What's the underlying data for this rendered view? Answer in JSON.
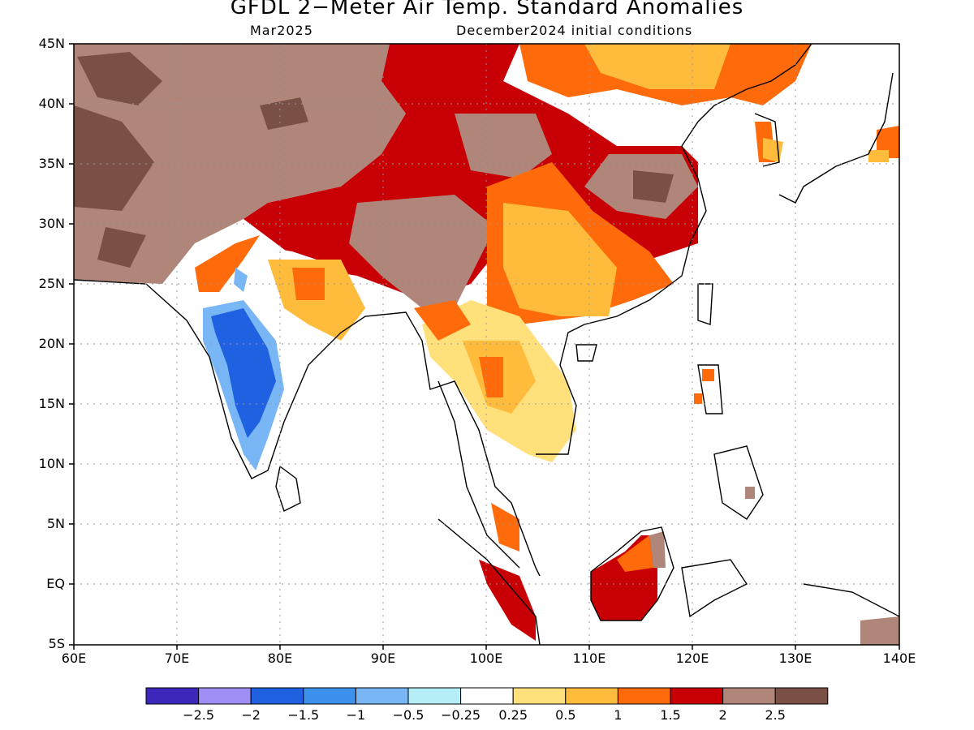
{
  "header": {
    "title": "GFDL 2−Meter Air Temp. Standard Anomalies",
    "month": "Mar2025",
    "init": "December2024 initial conditions"
  },
  "axes": {
    "lat_labels": [
      "45N",
      "40N",
      "35N",
      "30N",
      "25N",
      "20N",
      "15N",
      "10N",
      "5N",
      "EQ",
      "5S"
    ],
    "lon_labels": [
      "60E",
      "70E",
      "80E",
      "90E",
      "100E",
      "110E",
      "120E",
      "130E",
      "140E"
    ]
  },
  "colorbar": {
    "colors": [
      "#3b27ba",
      "#9f8ff5",
      "#1f61e0",
      "#3c91ec",
      "#79b6f5",
      "#b6eef8",
      "#ffffff",
      "#ffe07a",
      "#ffbb3b",
      "#ff6a0a",
      "#c80005",
      "#b0867a",
      "#7a5046"
    ],
    "labels": [
      "−2.5",
      "−2",
      "−1.5",
      "−1",
      "−0.5",
      "−0.25",
      "0.25",
      "0.5",
      "1",
      "1.5",
      "2",
      "2.5"
    ]
  },
  "map_regions": [
    {
      "name": "west-asia-anomaly",
      "level": "2.5"
    },
    {
      "name": "tibet-anomaly",
      "level": "2"
    },
    {
      "name": "china-anomaly",
      "level": "1"
    },
    {
      "name": "india-anomaly",
      "level": "-1.5"
    },
    {
      "name": "indochina-anomaly",
      "level": "0.5"
    },
    {
      "name": "borneo-anomaly",
      "level": "2"
    }
  ]
}
